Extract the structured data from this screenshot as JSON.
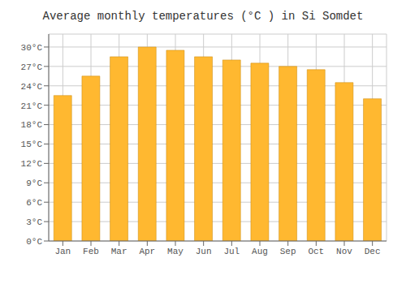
{
  "chart_data": {
    "type": "bar",
    "title": "Average monthly temperatures (°C ) in Si Somdet",
    "categories": [
      "Jan",
      "Feb",
      "Mar",
      "Apr",
      "May",
      "Jun",
      "Jul",
      "Aug",
      "Sep",
      "Oct",
      "Nov",
      "Dec"
    ],
    "values": [
      22.5,
      25.5,
      28.5,
      30.0,
      29.5,
      28.5,
      28.0,
      27.5,
      27.0,
      26.5,
      24.5,
      22.0
    ],
    "color": "#FFB830",
    "ylim": [
      0,
      32
    ],
    "yticks": [
      {
        "value": 0,
        "label": "0°C"
      },
      {
        "value": 3,
        "label": "3°C"
      },
      {
        "value": 6,
        "label": "6°C"
      },
      {
        "value": 9,
        "label": "9°C"
      },
      {
        "value": 12,
        "label": "12°C"
      },
      {
        "value": 15,
        "label": "15°C"
      },
      {
        "value": 18,
        "label": "18°C"
      },
      {
        "value": 21,
        "label": "21°C"
      },
      {
        "value": 24,
        "label": "24°C"
      },
      {
        "value": 27,
        "label": "27°C"
      },
      {
        "value": 30,
        "label": "30°C"
      }
    ],
    "grid": true
  }
}
